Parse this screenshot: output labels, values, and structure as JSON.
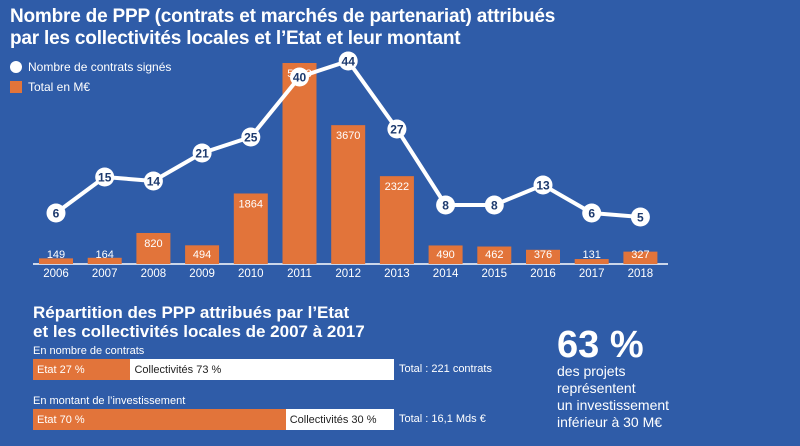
{
  "title_line1": "Nombre de PPP (contrats et marchés de partenariat) attribués",
  "title_line2": "par les collectivités locales et l’Etat et leur montant",
  "legend": {
    "contracts": "Nombre de contrats signés",
    "amount": "Total en M€"
  },
  "colors": {
    "background": "#2f5ca8",
    "bar": "#e2743a",
    "line": "#ffffff"
  },
  "chart_data": {
    "type": "bar+line",
    "title": "Nombre de PPP (contrats et marchés de partenariat) attribués par les collectivités locales et l’Etat et leur montant",
    "categories": [
      "2006",
      "2007",
      "2008",
      "2009",
      "2010",
      "2011",
      "2012",
      "2013",
      "2014",
      "2015",
      "2016",
      "2017",
      "2018"
    ],
    "series": [
      {
        "name": "Total en M€",
        "kind": "bar",
        "values": [
          149,
          164,
          820,
          494,
          1864,
          5313,
          3670,
          2322,
          490,
          462,
          376,
          131,
          327
        ]
      },
      {
        "name": "Nombre de contrats signés",
        "kind": "line",
        "values": [
          6,
          15,
          14,
          21,
          25,
          40,
          44,
          27,
          8,
          8,
          13,
          6,
          5
        ]
      }
    ],
    "bar_ylim": [
      0,
      5313
    ],
    "line_ylim": [
      0,
      44
    ]
  },
  "repartition": {
    "title_line1": "Répartition des PPP attribués par l’Etat",
    "title_line2": "et les collectivités locales de 2007 à 2017",
    "contracts": {
      "label": "En nombre de contrats",
      "etat_pct": 27,
      "etat_label": "Etat 27 %",
      "coll_label": "Collectivités 73 %",
      "total": "Total : 221 contrats"
    },
    "investment": {
      "label": "En montant de l’investissement",
      "etat_pct": 70,
      "etat_label": "Etat 70 %",
      "coll_label": "Collectivités 30 %",
      "total": "Total : 16,1 Mds €"
    }
  },
  "highlight": {
    "pct": "63 %",
    "line1": "des projets",
    "line2": "représentent",
    "line3": "un investissement",
    "line4": "inférieur à 30 M€"
  }
}
